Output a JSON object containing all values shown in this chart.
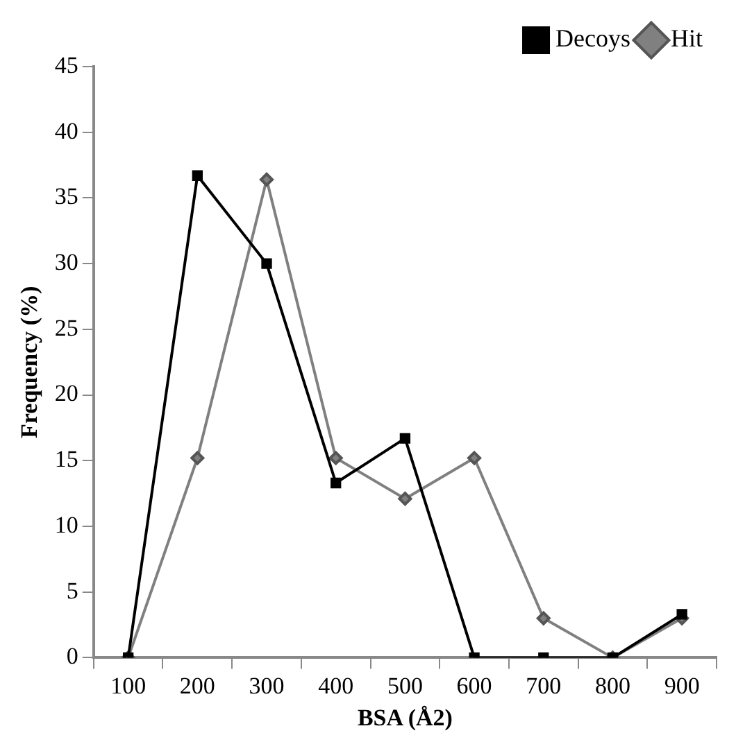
{
  "chart_data": {
    "type": "line",
    "xlabel": "BSA (Å2)",
    "ylabel": "Frequency (%)",
    "categories": [
      "100",
      "200",
      "300",
      "400",
      "500",
      "600",
      "700",
      "800",
      "900"
    ],
    "series": [
      {
        "name": "Hit",
        "color": "#808080",
        "marker": "diamond",
        "values": [
          0,
          15.2,
          36.4,
          15.2,
          12.1,
          15.2,
          3.0,
          0,
          3.0
        ]
      },
      {
        "name": "Decoys",
        "color": "#000000",
        "marker": "square",
        "values": [
          0,
          36.7,
          30.0,
          13.3,
          16.7,
          0,
          0,
          0,
          3.3
        ]
      }
    ],
    "ylim": [
      0,
      45
    ],
    "yticks": [
      0,
      5,
      10,
      15,
      20,
      25,
      30,
      35,
      40,
      45
    ],
    "grid": false,
    "legend": "top right"
  }
}
